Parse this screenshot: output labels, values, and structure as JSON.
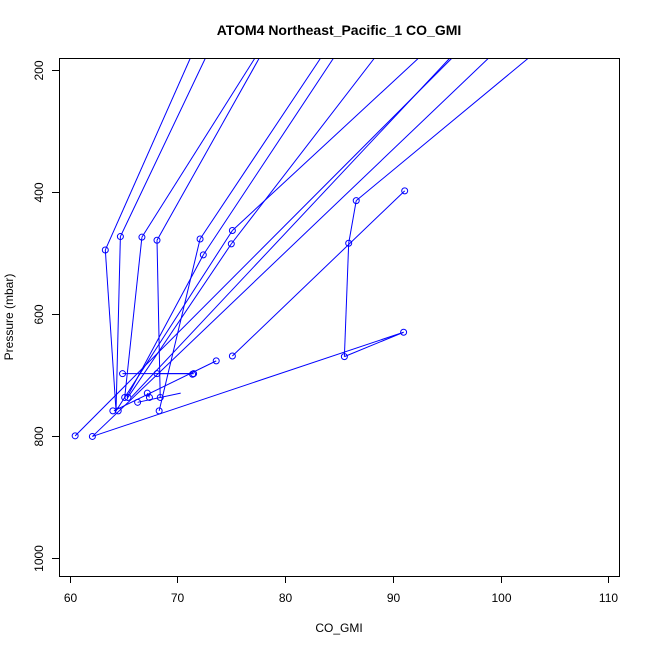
{
  "chart_data": {
    "type": "scatter",
    "title": "ATOM4 Northeast_Pacific_1 CO_GMI",
    "xlabel": "CO_GMI",
    "ylabel": "Pressure (mbar)",
    "xlim": [
      59,
      111
    ],
    "ylim": [
      1030,
      180
    ],
    "y_reversed": true,
    "x_ticks": [
      60,
      70,
      80,
      90,
      100,
      110
    ],
    "y_ticks": [
      200,
      400,
      600,
      800,
      1000
    ],
    "grid": false,
    "legend": "none",
    "color": "#0000ff",
    "line_segments": [
      [
        [
          63.3,
          495
        ],
        [
          71.2,
          180
        ]
      ],
      [
        [
          64.7,
          473
        ],
        [
          72.6,
          180
        ]
      ],
      [
        [
          66.7,
          474
        ],
        [
          77.2,
          180
        ]
      ],
      [
        [
          68.1,
          479
        ],
        [
          77.6,
          180
        ]
      ],
      [
        [
          72.1,
          477
        ],
        [
          83.3,
          180
        ]
      ],
      [
        [
          72.4,
          503
        ],
        [
          84.5,
          180
        ]
      ],
      [
        [
          75.0,
          485
        ],
        [
          88.3,
          180
        ]
      ],
      [
        [
          75.1,
          463
        ],
        [
          92.4,
          180
        ]
      ],
      [
        [
          60.5,
          800
        ],
        [
          95.5,
          180
        ]
      ],
      [
        [
          65.7,
          737
        ],
        [
          95.3,
          180
        ]
      ],
      [
        [
          62.1,
          801
        ],
        [
          98.9,
          180
        ]
      ],
      [
        [
          86.6,
          414
        ],
        [
          102.6,
          180
        ]
      ],
      [
        [
          63.3,
          495
        ],
        [
          64.3,
          760
        ]
      ],
      [
        [
          64.7,
          473
        ],
        [
          64.3,
          757
        ]
      ],
      [
        [
          66.7,
          474
        ],
        [
          65.1,
          737
        ]
      ],
      [
        [
          68.1,
          479
        ],
        [
          68.4,
          737
        ]
      ],
      [
        [
          72.1,
          477
        ],
        [
          68.3,
          759
        ]
      ],
      [
        [
          72.4,
          503
        ],
        [
          65.3,
          737
        ]
      ],
      [
        [
          75.0,
          485
        ],
        [
          65.4,
          737
        ]
      ],
      [
        [
          75.1,
          463
        ],
        [
          64.3,
          759
        ]
      ],
      [
        [
          86.6,
          414
        ],
        [
          85.9,
          484
        ]
      ],
      [
        [
          85.9,
          484
        ],
        [
          85.5,
          670
        ]
      ],
      [
        [
          91.1,
          398
        ],
        [
          75.1,
          669
        ]
      ],
      [
        [
          85.5,
          670
        ],
        [
          91.0,
          630
        ]
      ],
      [
        [
          91.0,
          630
        ],
        [
          62.1,
          801
        ]
      ],
      [
        [
          64.9,
          698
        ],
        [
          71.5,
          698
        ]
      ],
      [
        [
          68.1,
          698
        ],
        [
          71.5,
          698
        ]
      ],
      [
        [
          73.6,
          677
        ],
        [
          64.1,
          759
        ]
      ],
      [
        [
          66.3,
          745
        ],
        [
          70.3,
          730
        ]
      ],
      [
        [
          67.2,
          730
        ],
        [
          67.4,
          737
        ]
      ]
    ],
    "points": [
      {
        "x": 63.3,
        "y": 495
      },
      {
        "x": 64.7,
        "y": 473
      },
      {
        "x": 66.7,
        "y": 474
      },
      {
        "x": 68.1,
        "y": 479
      },
      {
        "x": 72.1,
        "y": 477
      },
      {
        "x": 72.4,
        "y": 503
      },
      {
        "x": 75.0,
        "y": 485
      },
      {
        "x": 75.1,
        "y": 463
      },
      {
        "x": 86.6,
        "y": 414
      },
      {
        "x": 91.1,
        "y": 398
      },
      {
        "x": 85.9,
        "y": 484
      },
      {
        "x": 91.0,
        "y": 630
      },
      {
        "x": 85.5,
        "y": 670
      },
      {
        "x": 75.1,
        "y": 669
      },
      {
        "x": 73.6,
        "y": 677
      },
      {
        "x": 71.5,
        "y": 698
      },
      {
        "x": 71.4,
        "y": 699
      },
      {
        "x": 68.1,
        "y": 698
      },
      {
        "x": 64.9,
        "y": 698
      },
      {
        "x": 67.2,
        "y": 730
      },
      {
        "x": 67.4,
        "y": 737
      },
      {
        "x": 68.4,
        "y": 737
      },
      {
        "x": 65.1,
        "y": 737
      },
      {
        "x": 65.4,
        "y": 737
      },
      {
        "x": 66.3,
        "y": 745
      },
      {
        "x": 64.0,
        "y": 759
      },
      {
        "x": 64.5,
        "y": 759
      },
      {
        "x": 68.3,
        "y": 759
      },
      {
        "x": 60.5,
        "y": 800
      },
      {
        "x": 62.1,
        "y": 801
      }
    ]
  }
}
